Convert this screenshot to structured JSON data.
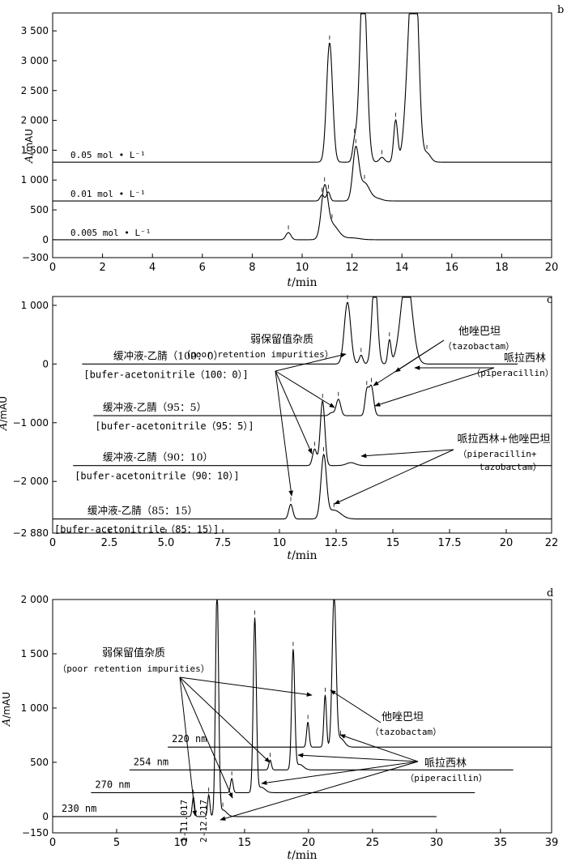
{
  "chart_data": [
    {
      "panel_label": "b",
      "type": "line",
      "xlabel_italic": "t",
      "xlabel_unit": "/min",
      "ylabel_italic": "A",
      "ylabel_unit": "/mAU",
      "xlim": [
        0,
        20
      ],
      "ylim": [
        -300,
        3800
      ],
      "xticks": [
        "0",
        "2",
        "4",
        "6",
        "8",
        "10",
        "12",
        "14",
        "16",
        "18",
        "20"
      ],
      "yticks": [
        {
          "v": -300,
          "t": "−300"
        },
        {
          "v": 0,
          "t": "0"
        },
        {
          "v": 500,
          "t": "500"
        },
        {
          "v": 1000,
          "t": "1 000"
        },
        {
          "v": 1500,
          "t": "1 500"
        },
        {
          "v": 2000,
          "t": "2 000"
        },
        {
          "v": 2500,
          "t": "2 500"
        },
        {
          "v": 3000,
          "t": "3 000"
        },
        {
          "v": 3500,
          "t": "3 500"
        }
      ],
      "series": [
        {
          "label": "0.05 mol • L⁻¹",
          "baseline": 1300,
          "x_start": 0,
          "x_end": 20,
          "label_x": 0.8,
          "peaks": [
            [
              11.1,
              2000,
              0.12
            ],
            [
              12.1,
              300,
              0.08
            ],
            [
              12.45,
              3150,
              0.14
            ],
            [
              13.2,
              80,
              0.1
            ],
            [
              13.75,
              700,
              0.08
            ],
            [
              14.35,
              2200,
              0.18
            ],
            [
              14.55,
              2300,
              0.14
            ],
            [
              15.0,
              150,
              0.15
            ]
          ]
        },
        {
          "label": "0.01 mol • L⁻¹",
          "baseline": 650,
          "x_start": 0,
          "x_end": 20,
          "label_x": 0.8,
          "peaks": [
            [
              10.8,
              100,
              0.08
            ],
            [
              11.05,
              150,
              0.07
            ],
            [
              12.15,
              850,
              0.12
            ],
            [
              12.5,
              300,
              0.2
            ],
            [
              13.0,
              40,
              0.2
            ]
          ]
        },
        {
          "label": "0.005 mol • L⁻¹",
          "baseline": 0,
          "x_start": 0,
          "x_end": 20,
          "label_x": 0.8,
          "peaks": [
            [
              9.45,
              120,
              0.1
            ],
            [
              10.9,
              800,
              0.13
            ],
            [
              11.2,
              250,
              0.25
            ],
            [
              12.0,
              30,
              0.3
            ]
          ]
        }
      ]
    },
    {
      "panel_label": "c",
      "type": "line",
      "xlabel_italic": "t",
      "xlabel_unit": "/min",
      "ylabel_italic": "A",
      "ylabel_unit": "/mAU",
      "xlim": [
        0,
        22
      ],
      "ylim": [
        -2880,
        1150
      ],
      "clip_top": 1150,
      "xticks": [
        "0",
        "2.5",
        "5.0",
        "7.5",
        "10",
        "12.5",
        "15",
        "17.5",
        "20",
        "22"
      ],
      "xtick_values": [
        0,
        2.5,
        5,
        7.5,
        10,
        12.5,
        15,
        17.5,
        20,
        22
      ],
      "yticks": [
        {
          "v": 1000,
          "t": "1 000"
        },
        {
          "v": 0,
          "t": "0"
        },
        {
          "v": -1000,
          "t": "−1 000"
        },
        {
          "v": -2000,
          "t": "−2 000"
        },
        {
          "v": -2880,
          "t": "−2 880"
        }
      ],
      "series": [
        {
          "label": "缓冲液-乙腈（100：0）",
          "label2": "[bufer-acetonitrile（100：0）]",
          "baseline": 0,
          "x_start": 1.3,
          "x_end": 20.5,
          "peaks": [
            [
              13.0,
              1050,
              0.14
            ],
            [
              13.6,
              150,
              0.08
            ],
            [
              14.2,
              1500,
              0.12
            ],
            [
              14.85,
              400,
              0.07
            ],
            [
              15.6,
              1500,
              0.25
            ]
          ]
        },
        {
          "label": "缓冲液-乙腈（95：5）",
          "label2": "[bufer-acetonitrile（95：5）]",
          "baseline": -880,
          "x_start": 1.8,
          "x_end": 22,
          "peaks": [
            [
              12.3,
              50,
              0.1
            ],
            [
              12.6,
              280,
              0.1
            ],
            [
              13.85,
              400,
              0.08
            ],
            [
              14.05,
              500,
              0.1
            ]
          ]
        },
        {
          "label": "缓冲液-乙腈（90：10）",
          "label2": "[bufer-acetonitrile（90：10）]",
          "baseline": -1730,
          "x_start": 0.9,
          "x_end": 22,
          "peaks": [
            [
              11.55,
              280,
              0.09
            ],
            [
              11.9,
              1100,
              0.1
            ],
            [
              13.15,
              50,
              0.2
            ]
          ]
        },
        {
          "label": "缓冲液-乙腈（85：15）",
          "label2": "[bufer-acetonitrile（85：15）]",
          "baseline": -2640,
          "x_start": 0,
          "x_end": 22,
          "peaks": [
            [
              10.5,
              250,
              0.09
            ],
            [
              11.95,
              1050,
              0.12
            ],
            [
              12.4,
              150,
              0.3
            ]
          ]
        }
      ],
      "annotations": [
        {
          "text": "弱保留值杂质",
          "text2": "（poor retention impurities）"
        },
        {
          "text": "他唑巴坦",
          "text2": "（tazobactam）"
        },
        {
          "text": "哌拉西林",
          "text2": "（piperacillin）"
        },
        {
          "text": "哌拉西林+他唑巴坦",
          "text2": "（piperacillin+",
          "text3": "tazobactam）"
        }
      ]
    },
    {
      "panel_label": "d",
      "type": "line",
      "xlabel_italic": "t",
      "xlabel_unit": "/min",
      "ylabel_italic": "A",
      "ylabel_unit": "/mAU",
      "xlim": [
        0,
        39
      ],
      "ylim": [
        -150,
        2000
      ],
      "xticks": [
        "0",
        "5",
        "10",
        "15",
        "20",
        "25",
        "30",
        "35",
        "39"
      ],
      "xtick_values": [
        0,
        5,
        10,
        15,
        20,
        25,
        30,
        35,
        39
      ],
      "yticks": [
        {
          "v": -150,
          "t": "−150"
        },
        {
          "v": 0,
          "t": "0"
        },
        {
          "v": 500,
          "t": "500"
        },
        {
          "v": 1000,
          "t": "1 000"
        },
        {
          "v": 1500,
          "t": "1 500"
        },
        {
          "v": 2000,
          "t": "2 000"
        }
      ],
      "series": [
        {
          "label": "220 nm",
          "baseline": 640,
          "x_start": 9,
          "x_end": 39,
          "peaks": [
            [
              19.95,
              230,
              0.1
            ],
            [
              21.3,
              480,
              0.1
            ],
            [
              22.0,
              1400,
              0.15
            ],
            [
              22.5,
              80,
              0.3
            ]
          ]
        },
        {
          "label": "254 nm",
          "baseline": 430,
          "x_start": 6,
          "x_end": 36,
          "peaks": [
            [
              17.0,
              90,
              0.1
            ],
            [
              18.8,
              1100,
              0.12
            ],
            [
              19.3,
              50,
              0.3
            ]
          ]
        },
        {
          "label": "270 nm",
          "baseline": 220,
          "x_start": 3,
          "x_end": 33,
          "peaks": [
            [
              14.0,
              130,
              0.1
            ],
            [
              15.8,
              1600,
              0.12
            ],
            [
              16.3,
              50,
              0.3
            ]
          ]
        },
        {
          "label": "230 nm",
          "baseline": 0,
          "x_start": 0,
          "x_end": 30,
          "peaks": [
            [
              11.0,
              180,
              0.09
            ],
            [
              12.2,
              200,
              0.09
            ],
            [
              12.85,
              2100,
              0.12
            ],
            [
              13.3,
              60,
              0.3
            ]
          ]
        }
      ],
      "peak_labels": [
        "1-11.017",
        "2-12.217"
      ],
      "annotations": [
        {
          "text": "弱保留值杂质",
          "text2": "（poor retention impurities）"
        },
        {
          "text": "他唑巴坦",
          "text2": "（tazobactam）"
        },
        {
          "text": "哌拉西林",
          "text2": "（piperacillin）"
        }
      ]
    }
  ]
}
